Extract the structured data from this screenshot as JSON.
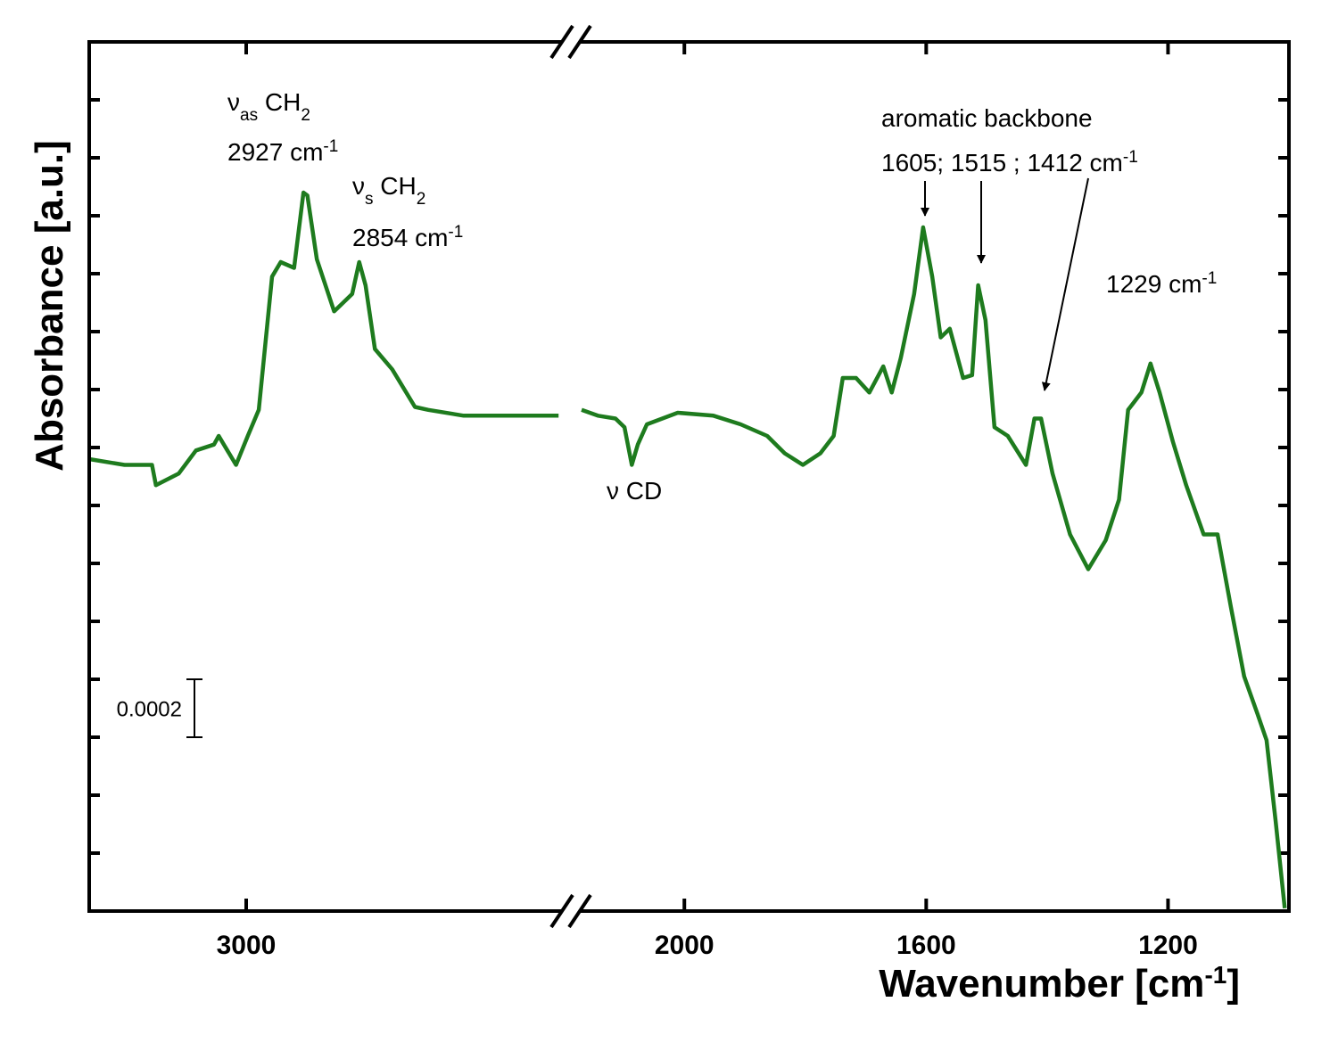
{
  "chart_data": {
    "type": "line",
    "x_label": [
      {
        "text": "Wavenumber [cm"
      },
      {
        "text": "-1",
        "shift": "super"
      },
      {
        "text": "]"
      }
    ],
    "y_label": "Absorbance [a.u.]",
    "ylim": [
      0,
      0.003
    ],
    "scale_bar": 0.0002,
    "x_segments": [
      {
        "xlim": [
          3200,
          2600
        ],
        "xticks": [
          3000
        ]
      },
      {
        "xlim": [
          2170,
          1000
        ],
        "xticks": [
          2000,
          1600,
          1200
        ]
      }
    ],
    "series": [
      {
        "color": "#1e7b1e",
        "x": [
          3200,
          3155,
          3120,
          3115,
          3086,
          3064,
          3041,
          3035,
          3024,
          3013,
          2998,
          2984,
          2967,
          2956,
          2939,
          2927,
          2922,
          2910,
          2888,
          2865,
          2856,
          2848,
          2836,
          2814,
          2785,
          2768,
          2723,
          2677,
          2632,
          2602
        ],
        "values": [
          0.00156,
          0.00154,
          0.00154,
          0.00147,
          0.00151,
          0.00159,
          0.00161,
          0.00164,
          0.00159,
          0.00154,
          0.00164,
          0.00173,
          0.00219,
          0.00224,
          0.00222,
          0.00248,
          0.00247,
          0.00225,
          0.00207,
          0.00213,
          0.00224,
          0.00216,
          0.00194,
          0.00187,
          0.00174,
          0.00173,
          0.00171,
          0.00171,
          0.00171,
          0.00171
        ]
      },
      {
        "color": "#1e7b1e",
        "x": [
          2170,
          2143,
          2114,
          2099,
          2087,
          2077,
          2062,
          2011,
          1952,
          1907,
          1863,
          1834,
          1804,
          1775,
          1753,
          1738,
          1716,
          1694,
          1671,
          1657,
          1642,
          1620,
          1605,
          1590,
          1576,
          1561,
          1539,
          1524,
          1514,
          1502,
          1487,
          1465,
          1435,
          1421,
          1410,
          1391,
          1362,
          1332,
          1303,
          1281,
          1266,
          1244,
          1229,
          1214,
          1192,
          1170,
          1141,
          1118,
          1096,
          1074,
          1052,
          1037,
          1022,
          1007
        ],
        "values": [
          0.00173,
          0.00171,
          0.0017,
          0.00167,
          0.00154,
          0.00161,
          0.00168,
          0.00172,
          0.00171,
          0.00168,
          0.00164,
          0.00158,
          0.00154,
          0.00158,
          0.00164,
          0.00184,
          0.00184,
          0.00179,
          0.00188,
          0.00179,
          0.00191,
          0.00213,
          0.00236,
          0.00219,
          0.00198,
          0.00201,
          0.00184,
          0.00185,
          0.00216,
          0.00204,
          0.00167,
          0.00164,
          0.00154,
          0.0017,
          0.0017,
          0.00151,
          0.0013,
          0.00118,
          0.00128,
          0.00142,
          0.00173,
          0.00179,
          0.00189,
          0.00179,
          0.00162,
          0.00147,
          0.0013,
          0.0013,
          0.00105,
          0.00081,
          0.00068,
          0.00059,
          0.00031,
          1e-05
        ]
      }
    ],
    "annotations": [
      {
        "parts": [
          {
            "text": "ν"
          },
          {
            "text": "as",
            "shift": "sub"
          },
          {
            "text": " CH"
          },
          {
            "text": "2",
            "shift": "sub"
          }
        ]
      },
      {
        "parts": [
          {
            "text": "2927 cm"
          },
          {
            "text": "-1",
            "shift": "super"
          }
        ]
      },
      {
        "parts": [
          {
            "text": "ν"
          },
          {
            "text": "s",
            "shift": "sub"
          },
          {
            "text": " CH"
          },
          {
            "text": "2",
            "shift": "sub"
          }
        ]
      },
      {
        "parts": [
          {
            "text": "2854 cm"
          },
          {
            "text": "-1",
            "shift": "super"
          }
        ]
      },
      {
        "parts": [
          {
            "text": "aromatic backbone"
          }
        ]
      },
      {
        "parts": [
          {
            "text": "1605; 1515 ; 1412 cm"
          },
          {
            "text": "-1",
            "shift": "super"
          }
        ]
      },
      {
        "parts": [
          {
            "text": "1229 cm"
          },
          {
            "text": "-1",
            "shift": "super"
          }
        ]
      },
      {
        "parts": [
          {
            "text": "ν CD"
          }
        ]
      }
    ]
  }
}
